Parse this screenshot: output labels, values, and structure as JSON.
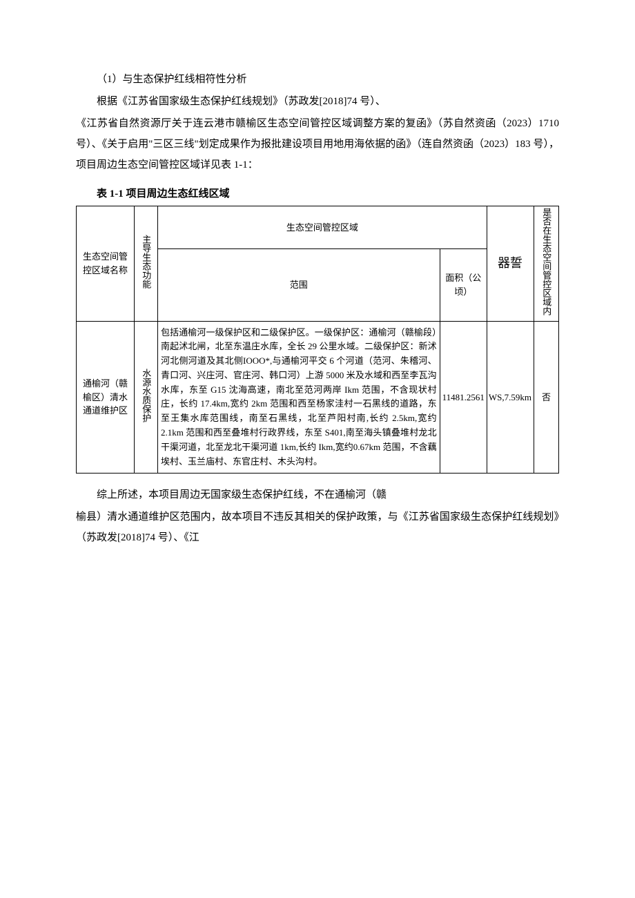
{
  "p1": "（1）与生态保护红线相符性分析",
  "p2": "根据《江苏省国家级生态保护红线规划》（苏政发[2018]74 号）、",
  "p3": "《江苏省自然资源厅关于连云港市赣榆区生态空间管控区域调整方案的复函》（苏自然资函（2023）1710 号）、《关于启用\"三区三线\"划定成果作为报批建设项目用地用海依据的函》（连自然资函（2023）183 号），项目周边生态空间管控区域详见表 1-1：",
  "table_caption": "表 1-1 项目周边生态红线区域",
  "headers": {
    "zone_name": "生态空间管控区域名称",
    "eco_func": "主导生态功能",
    "control_area": "生态空间管控区域",
    "scope": "范围",
    "area": "面积（公顷）",
    "dist": "器誓",
    "inside": "是否在生态空间管控区域内"
  },
  "row": {
    "name": "通榆河（赣榆区）清水通道维护区",
    "func": "水源水质保护",
    "scope": "包括通榆河一级保护区和二级保护区。一级保护区：通榆河（赣榆段）南起沭北闸，北至东温庄水库，全长 29 公里水域。二级保护区：新沭河北侧河道及其北侧IOOO*,与通榆河平交 6 个河道（范河、朱稽河、青口河、兴庄河、官庄河、韩口河）上游 5000 米及水域和西至李瓦沟水库，东至 G15 沈海高速，南北至范河两岸 Ikm 范围，不含现状村庄，长约 17.4km,宽约 2km 范围和西至杨家洼村一石黑线的道路，东至王集水库范围线，南至石黑线，北至芦阳村南,长约 2.5km,宽约 2.1km 范围和西至叠堆村行政界线，东至 S401,南至海头镇叠堆村龙北干渠河道，北至龙北干渠河道 1km,长约 Ikm,宽约0.67km 范围，不含藕埃村、玉兰庙村、东官庄村、木头沟村。",
    "area": "11481.2561",
    "dist": "WS,7.59km",
    "inside": "否"
  },
  "p4": "综上所述，本项目周边无国家级生态保护红线，不在通榆河（赣",
  "p5": "榆县）清水通道维护区范围内，故本项目不违反其相关的保护政策，与《江苏省国家级生态保护红线规划》（苏政发[2018]74 号）、《江"
}
